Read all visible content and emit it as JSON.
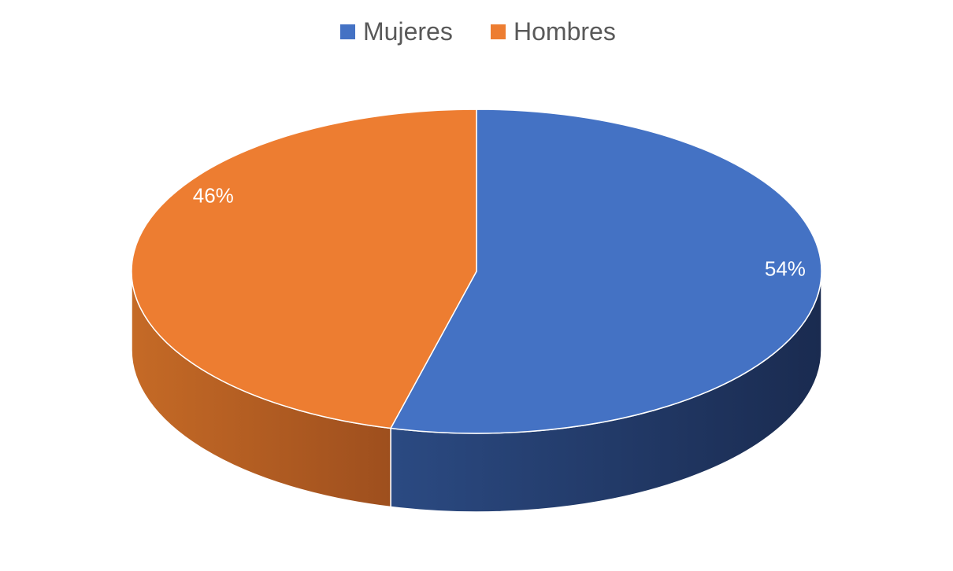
{
  "chart_data": {
    "type": "pie",
    "style": "3d",
    "categories": [
      "Mujeres",
      "Hombres"
    ],
    "values": [
      54,
      46
    ],
    "data_labels": [
      "54%",
      "46%"
    ],
    "colors": [
      "#4472C4",
      "#ED7D31"
    ],
    "side_colors": {
      "Mujeres": [
        "#2B4A82",
        "#1A2B50"
      ],
      "Hombres": [
        "#C56A26",
        "#9E4F1E"
      ]
    },
    "legend": {
      "position": "top",
      "entries": [
        "Mujeres",
        "Hombres"
      ]
    },
    "title": ""
  }
}
